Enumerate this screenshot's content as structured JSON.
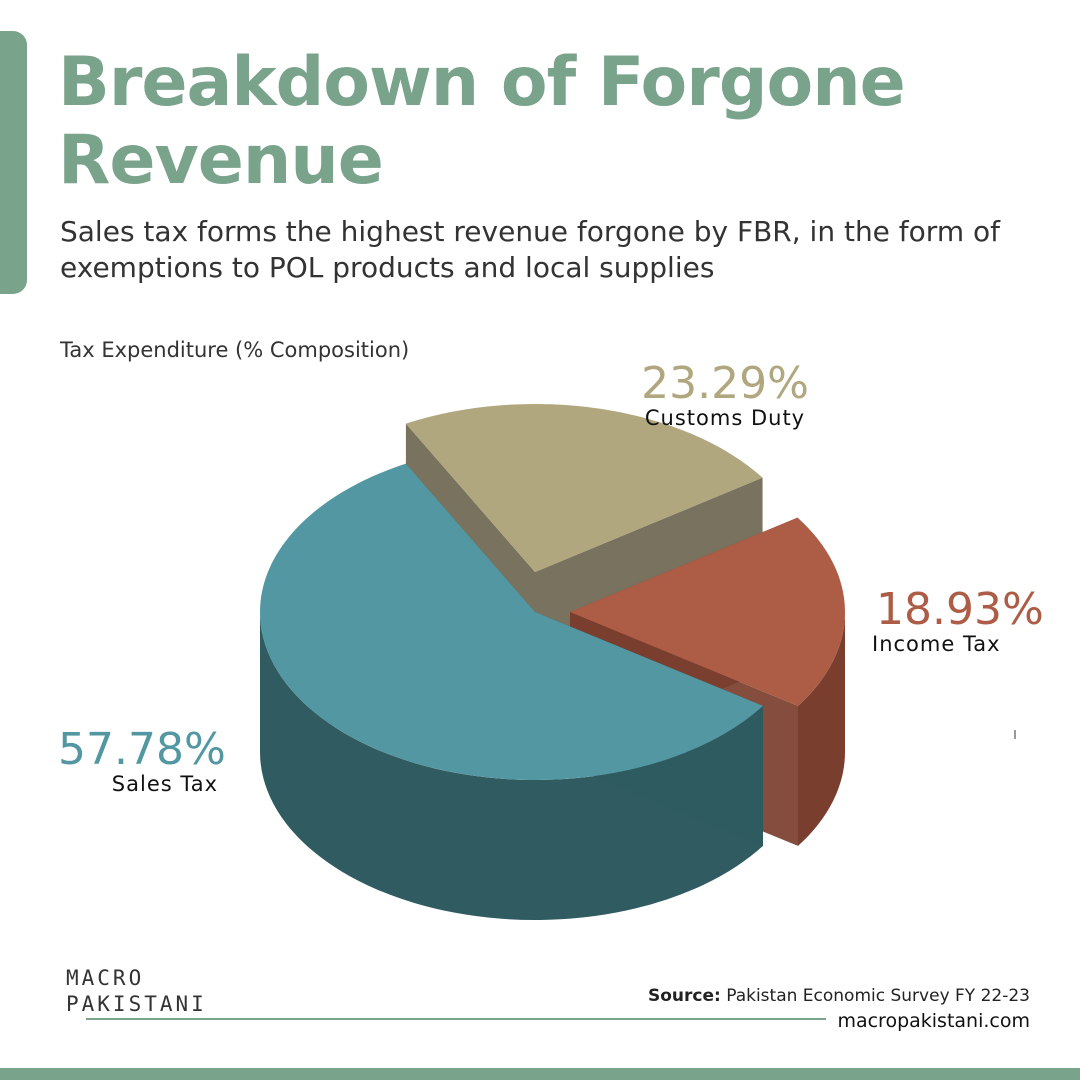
{
  "header": {
    "title": "Breakdown of Forgone Revenue",
    "subtitle": "Sales tax forms the highest revenue forgone by FBR, in the form of exemptions to POL products and local supplies"
  },
  "chart_data": {
    "type": "pie",
    "title": "Tax Expenditure (% Composition)",
    "unit": "%",
    "slices": [
      {
        "label": "Customs Duty",
        "value": 23.29,
        "value_label": "23.29%",
        "color": "#b0a77f"
      },
      {
        "label": "Income Tax",
        "value": 18.93,
        "value_label": "18.93%",
        "color": "#ad5d46"
      },
      {
        "label": "Sales Tax",
        "value": 57.78,
        "value_label": "57.78%",
        "color": "#5397a2"
      }
    ],
    "side_colors": [
      "#6e6650",
      "#7a3e2e",
      "#2f5b61"
    ],
    "label_colors": [
      "#b0a77f",
      "#ad5d46",
      "#5397a2"
    ]
  },
  "footer": {
    "logo_line1": "MACRO",
    "logo_line2": "PAKISTANI",
    "source_label": "Source:",
    "source_text": "Pakistan Economic Survey FY 22-23",
    "website": "macropakistani.com"
  },
  "colors": {
    "accent": "#7aa38c"
  }
}
